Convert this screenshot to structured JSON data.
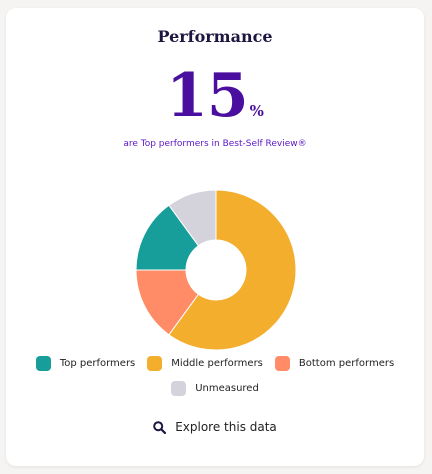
{
  "card": {
    "title": "Performance",
    "stat_value": "15",
    "stat_unit": "%",
    "stat_caption": "are Top performers in Best-Self Review®"
  },
  "chart_data": {
    "type": "pie",
    "categories": [
      "Middle performers",
      "Bottom performers",
      "Top performers",
      "Unmeasured"
    ],
    "values": [
      60,
      15,
      15,
      10
    ],
    "colors": [
      "#f4ae2e",
      "#ff8c66",
      "#179e9a",
      "#d4d3dc"
    ],
    "donut": true,
    "legend_position": "bottom"
  },
  "legend": {
    "items": [
      {
        "label": "Top performers",
        "color": "#179e9a"
      },
      {
        "label": "Middle performers",
        "color": "#f4ae2e"
      },
      {
        "label": "Bottom performers",
        "color": "#ff8c66"
      },
      {
        "label": "Unmeasured",
        "color": "#d4d3dc"
      }
    ]
  },
  "actions": {
    "explore_label": "Explore this data",
    "explore_icon": "search-icon"
  }
}
